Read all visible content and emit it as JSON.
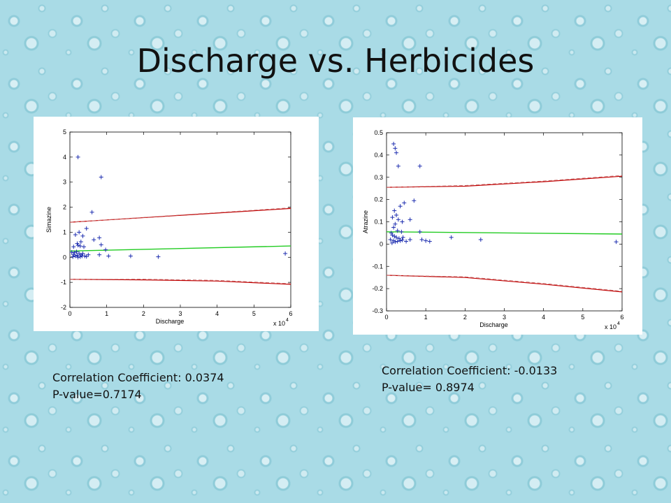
{
  "slide": {
    "title": "Discharge vs. Herbicides"
  },
  "captions": {
    "left": {
      "corr": "Correlation Coefficient: 0.0374",
      "pval": "P-value=0.7174"
    },
    "right": {
      "corr": "Correlation Coefficient: -0.0133",
      "pval": "P-value= 0.8974"
    }
  },
  "colors": {
    "points": "#1f2fb0",
    "fit": "#22cc22",
    "bounds": "#c00000",
    "bounds_dashed": "#c87070"
  },
  "chart_data": [
    {
      "type": "scatter",
      "xlabel": "Discharge",
      "ylabel": "Simazine",
      "x_exponent_label": "x 10",
      "x_exponent_power": "4",
      "xlim": [
        0,
        6
      ],
      "ylim": [
        -2,
        5
      ],
      "xticks": [
        0,
        1,
        2,
        3,
        4,
        5,
        6
      ],
      "yticks": [
        -2,
        -1,
        0,
        1,
        2,
        3,
        4,
        5
      ],
      "points": [
        [
          0.22,
          4.0
        ],
        [
          0.85,
          3.2
        ],
        [
          0.6,
          1.8
        ],
        [
          0.45,
          1.15
        ],
        [
          0.25,
          1.0
        ],
        [
          0.15,
          0.9
        ],
        [
          0.35,
          0.85
        ],
        [
          0.8,
          0.78
        ],
        [
          0.65,
          0.7
        ],
        [
          0.3,
          0.62
        ],
        [
          0.2,
          0.55
        ],
        [
          0.1,
          0.42
        ],
        [
          0.22,
          0.48
        ],
        [
          0.28,
          0.45
        ],
        [
          0.38,
          0.42
        ],
        [
          0.85,
          0.5
        ],
        [
          0.97,
          0.3
        ],
        [
          0.05,
          0.2
        ],
        [
          0.12,
          0.18
        ],
        [
          0.18,
          0.22
        ],
        [
          0.25,
          0.15
        ],
        [
          0.3,
          0.1
        ],
        [
          0.35,
          0.15
        ],
        [
          0.4,
          0.05
        ],
        [
          0.15,
          0.05
        ],
        [
          0.2,
          0.08
        ],
        [
          0.1,
          0.1
        ],
        [
          0.5,
          0.1
        ],
        [
          0.8,
          0.1
        ],
        [
          1.05,
          0.05
        ],
        [
          1.65,
          0.05
        ],
        [
          2.4,
          0.02
        ],
        [
          5.85,
          0.15
        ],
        [
          0.08,
          0.02
        ],
        [
          0.22,
          0.0
        ],
        [
          0.28,
          0.02
        ],
        [
          0.33,
          0.05
        ],
        [
          0.45,
          0.03
        ]
      ],
      "fit_line": [
        [
          0,
          0.25
        ],
        [
          6,
          0.45
        ]
      ],
      "upper_bound": [
        [
          0,
          1.4
        ],
        [
          6,
          1.95
        ]
      ],
      "lower_bound": [
        [
          0,
          -0.88
        ],
        [
          2,
          -0.9
        ],
        [
          4,
          -0.95
        ],
        [
          6,
          -1.08
        ]
      ]
    },
    {
      "type": "scatter",
      "xlabel": "Discharge",
      "ylabel": "Atrazine",
      "x_exponent_label": "x 10",
      "x_exponent_power": "4",
      "xlim": [
        0,
        6
      ],
      "ylim": [
        -0.3,
        0.5
      ],
      "xticks": [
        0,
        1,
        2,
        3,
        4,
        5,
        6
      ],
      "yticks": [
        -0.3,
        -0.2,
        -0.1,
        0,
        0.1,
        0.2,
        0.3,
        0.4,
        0.5
      ],
      "ytick_labels": [
        "-0.3",
        "-0.2",
        "-0.1",
        "0",
        "0.1",
        "0.2",
        "0.3",
        "0.4",
        "0.5"
      ],
      "points": [
        [
          0.18,
          0.45
        ],
        [
          0.22,
          0.43
        ],
        [
          0.25,
          0.41
        ],
        [
          0.3,
          0.35
        ],
        [
          0.85,
          0.35
        ],
        [
          0.45,
          0.185
        ],
        [
          0.7,
          0.195
        ],
        [
          0.35,
          0.17
        ],
        [
          0.2,
          0.15
        ],
        [
          0.25,
          0.13
        ],
        [
          0.15,
          0.12
        ],
        [
          0.3,
          0.11
        ],
        [
          0.4,
          0.1
        ],
        [
          0.6,
          0.11
        ],
        [
          0.22,
          0.09
        ],
        [
          0.18,
          0.075
        ],
        [
          0.28,
          0.06
        ],
        [
          0.38,
          0.055
        ],
        [
          0.85,
          0.055
        ],
        [
          0.12,
          0.05
        ],
        [
          0.15,
          0.04
        ],
        [
          0.2,
          0.035
        ],
        [
          0.25,
          0.03
        ],
        [
          0.32,
          0.025
        ],
        [
          0.42,
          0.03
        ],
        [
          0.6,
          0.02
        ],
        [
          0.9,
          0.02
        ],
        [
          1.0,
          0.015
        ],
        [
          1.1,
          0.012
        ],
        [
          1.65,
          0.03
        ],
        [
          2.4,
          0.02
        ],
        [
          5.85,
          0.01
        ],
        [
          0.1,
          0.02
        ],
        [
          0.18,
          0.015
        ],
        [
          0.22,
          0.01
        ],
        [
          0.28,
          0.012
        ],
        [
          0.35,
          0.015
        ],
        [
          0.4,
          0.018
        ],
        [
          0.5,
          0.012
        ],
        [
          0.14,
          0.005
        ]
      ],
      "fit_line": [
        [
          0,
          0.055
        ],
        [
          6,
          0.045
        ]
      ],
      "upper_bound": [
        [
          0,
          0.255
        ],
        [
          2,
          0.26
        ],
        [
          4,
          0.28
        ],
        [
          6,
          0.305
        ]
      ],
      "lower_bound": [
        [
          0,
          -0.14
        ],
        [
          2,
          -0.15
        ],
        [
          4,
          -0.18
        ],
        [
          6,
          -0.215
        ]
      ]
    }
  ]
}
